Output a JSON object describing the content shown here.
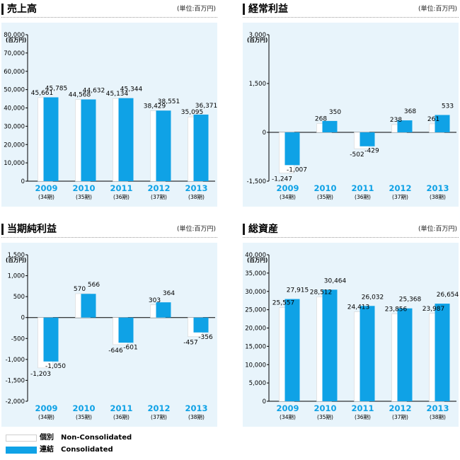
{
  "colors": {
    "non_consolidated": "#ffffff",
    "consolidated": "#0fa2e6",
    "year_label": "#0fa2e6",
    "plot_bg": "#e8f4fb"
  },
  "legend": {
    "items": [
      {
        "jp": "個別",
        "en": "Non-Consolidated",
        "color": "#ffffff"
      },
      {
        "jp": "連結",
        "en": "Consolidated",
        "color": "#0fa2e6"
      }
    ]
  },
  "chart_data": [
    {
      "type": "bar",
      "title": "売上高",
      "unit_label": "(単位:百万円)",
      "y_unit": "(百万円)",
      "categories": [
        "2009",
        "2010",
        "2011",
        "2012",
        "2013"
      ],
      "periods": [
        "(34期)",
        "(35期)",
        "(36期)",
        "(37期)",
        "(38期)"
      ],
      "ylim": [
        0,
        80000
      ],
      "yticks": [
        0,
        10000,
        20000,
        30000,
        40000,
        50000,
        60000,
        70000,
        80000
      ],
      "ytick_labels": [
        "0",
        "10,000",
        "20,000",
        "30,000",
        "40,000",
        "50,000",
        "60,000",
        "70,000",
        "80,000"
      ],
      "series": [
        {
          "name": "Non-Consolidated",
          "values": [
            45661,
            44568,
            45134,
            38429,
            35095
          ],
          "labels": [
            "45,661",
            "44,568",
            "45,134",
            "38,429",
            "35,095"
          ]
        },
        {
          "name": "Consolidated",
          "values": [
            45785,
            44632,
            45344,
            38551,
            36371
          ],
          "labels": [
            "45,785",
            "44,632",
            "45,344",
            "38,551",
            "36,371"
          ]
        }
      ]
    },
    {
      "type": "bar",
      "title": "経常利益",
      "unit_label": "(単位:百万円)",
      "y_unit": "(百万円)",
      "categories": [
        "2009",
        "2010",
        "2011",
        "2012",
        "2013"
      ],
      "periods": [
        "(34期)",
        "(35期)",
        "(36期)",
        "(37期)",
        "(38期)"
      ],
      "ylim": [
        -1500,
        3000
      ],
      "yticks": [
        -1500,
        0,
        1500,
        3000
      ],
      "ytick_labels": [
        "-1,500",
        "0",
        "1,500",
        "3,000"
      ],
      "series": [
        {
          "name": "Non-Consolidated",
          "values": [
            -1247,
            268,
            -502,
            238,
            261
          ],
          "labels": [
            "-1,247",
            "268",
            "-502",
            "238",
            "261"
          ]
        },
        {
          "name": "Consolidated",
          "values": [
            -1007,
            350,
            -429,
            368,
            533
          ],
          "labels": [
            "-1,007",
            "350",
            "-429",
            "368",
            "533"
          ]
        }
      ]
    },
    {
      "type": "bar",
      "title": "当期純利益",
      "unit_label": "(単位:百万円)",
      "y_unit": "(百万円)",
      "categories": [
        "2009",
        "2010",
        "2011",
        "2012",
        "2013"
      ],
      "periods": [
        "(34期)",
        "(35期)",
        "(36期)",
        "(37期)",
        "(38期)"
      ],
      "ylim": [
        -2000,
        1500
      ],
      "yticks": [
        -2000,
        -1500,
        -1000,
        -500,
        0,
        500,
        1000,
        1500
      ],
      "ytick_labels": [
        "-2,000",
        "-1,500",
        "-1,000",
        "-500",
        "0",
        "500",
        "1,000",
        "1,500"
      ],
      "series": [
        {
          "name": "Non-Consolidated",
          "values": [
            -1203,
            570,
            -646,
            303,
            -457
          ],
          "labels": [
            "-1,203",
            "570",
            "-646",
            "303",
            "-457"
          ]
        },
        {
          "name": "Consolidated",
          "values": [
            -1050,
            566,
            -601,
            364,
            -356
          ],
          "labels": [
            "-1,050",
            "566",
            "-601",
            "364",
            "-356"
          ]
        }
      ]
    },
    {
      "type": "bar",
      "title": "総資産",
      "unit_label": "(単位:百万円)",
      "y_unit": "(百万円)",
      "categories": [
        "2009",
        "2010",
        "2011",
        "2012",
        "2013"
      ],
      "periods": [
        "(34期)",
        "(35期)",
        "(36期)",
        "(37期)",
        "(38期)"
      ],
      "ylim": [
        0,
        40000
      ],
      "yticks": [
        0,
        5000,
        10000,
        15000,
        20000,
        25000,
        30000,
        35000,
        40000
      ],
      "ytick_labels": [
        "0",
        "5,000",
        "10,000",
        "15,000",
        "20,000",
        "25,000",
        "30,000",
        "35,000",
        "40,000"
      ],
      "series": [
        {
          "name": "Non-Consolidated",
          "values": [
            25557,
            28512,
            24413,
            23856,
            23987
          ],
          "labels": [
            "25,557",
            "28,512",
            "24,413",
            "23,856",
            "23,987"
          ]
        },
        {
          "name": "Consolidated",
          "values": [
            27915,
            30464,
            26032,
            25368,
            26654
          ],
          "labels": [
            "27,915",
            "30,464",
            "26,032",
            "25,368",
            "26,654"
          ]
        }
      ]
    }
  ]
}
